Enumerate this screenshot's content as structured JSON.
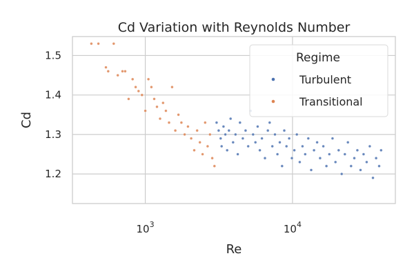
{
  "chart_data": {
    "type": "scatter",
    "title": "Cd Variation with Reynolds Number",
    "xlabel": "Re",
    "ylabel": "Cd",
    "x_scale": "log",
    "xlim": [
      320,
      50000
    ],
    "ylim": [
      1.125,
      1.548
    ],
    "grid": true,
    "x_ticks": [
      {
        "value": 1000,
        "base": "10",
        "exp": "3"
      },
      {
        "value": 10000,
        "base": "10",
        "exp": "4"
      }
    ],
    "y_ticks": [
      {
        "value": 1.2,
        "label": "1.2"
      },
      {
        "value": 1.3,
        "label": "1.3"
      },
      {
        "value": 1.4,
        "label": "1.4"
      },
      {
        "value": 1.5,
        "label": "1.5"
      }
    ],
    "legend": {
      "title": "Regime",
      "position": "top-right",
      "entries": [
        {
          "label": "Turbulent",
          "color": "#4c72b0"
        },
        {
          "label": "Transitional",
          "color": "#dd8452"
        }
      ]
    },
    "series": [
      {
        "name": "Turbulent",
        "color": "#4c72b0",
        "points": [
          [
            3050,
            1.33
          ],
          [
            3150,
            1.31
          ],
          [
            3250,
            1.29
          ],
          [
            3300,
            1.27
          ],
          [
            3400,
            1.32
          ],
          [
            3500,
            1.3
          ],
          [
            3600,
            1.26
          ],
          [
            3700,
            1.31
          ],
          [
            3800,
            1.34
          ],
          [
            3950,
            1.28
          ],
          [
            4100,
            1.3
          ],
          [
            4250,
            1.25
          ],
          [
            4400,
            1.33
          ],
          [
            4600,
            1.29
          ],
          [
            4800,
            1.31
          ],
          [
            5000,
            1.27
          ],
          [
            5200,
            1.36
          ],
          [
            5400,
            1.3
          ],
          [
            5600,
            1.28
          ],
          [
            5800,
            1.32
          ],
          [
            6000,
            1.26
          ],
          [
            6200,
            1.29
          ],
          [
            6500,
            1.24
          ],
          [
            6800,
            1.31
          ],
          [
            7000,
            1.33
          ],
          [
            7300,
            1.27
          ],
          [
            7600,
            1.3
          ],
          [
            7900,
            1.25
          ],
          [
            8200,
            1.28
          ],
          [
            8500,
            1.22
          ],
          [
            8800,
            1.31
          ],
          [
            9100,
            1.27
          ],
          [
            9500,
            1.29
          ],
          [
            9900,
            1.24
          ],
          [
            10300,
            1.26
          ],
          [
            10700,
            1.3
          ],
          [
            11200,
            1.23
          ],
          [
            11700,
            1.27
          ],
          [
            12200,
            1.25
          ],
          [
            12800,
            1.29
          ],
          [
            13400,
            1.21
          ],
          [
            14000,
            1.26
          ],
          [
            14700,
            1.28
          ],
          [
            15400,
            1.24
          ],
          [
            16200,
            1.27
          ],
          [
            17000,
            1.22
          ],
          [
            17800,
            1.25
          ],
          [
            18700,
            1.29
          ],
          [
            19600,
            1.23
          ],
          [
            20600,
            1.26
          ],
          [
            21600,
            1.2
          ],
          [
            22700,
            1.25
          ],
          [
            23800,
            1.28
          ],
          [
            25000,
            1.22
          ],
          [
            26300,
            1.24
          ],
          [
            27600,
            1.26
          ],
          [
            29000,
            1.21
          ],
          [
            30400,
            1.25
          ],
          [
            31900,
            1.23
          ],
          [
            33500,
            1.27
          ],
          [
            35200,
            1.19
          ],
          [
            37000,
            1.24
          ],
          [
            38800,
            1.22
          ],
          [
            40000,
            1.26
          ]
        ]
      },
      {
        "name": "Transitional",
        "color": "#dd8452",
        "points": [
          [
            430,
            1.53
          ],
          [
            480,
            1.53
          ],
          [
            540,
            1.47
          ],
          [
            560,
            1.46
          ],
          [
            610,
            1.53
          ],
          [
            650,
            1.45
          ],
          [
            700,
            1.46
          ],
          [
            730,
            1.46
          ],
          [
            770,
            1.39
          ],
          [
            820,
            1.44
          ],
          [
            860,
            1.42
          ],
          [
            900,
            1.41
          ],
          [
            950,
            1.4
          ],
          [
            1000,
            1.36
          ],
          [
            1050,
            1.44
          ],
          [
            1100,
            1.42
          ],
          [
            1150,
            1.39
          ],
          [
            1200,
            1.37
          ],
          [
            1260,
            1.34
          ],
          [
            1320,
            1.38
          ],
          [
            1380,
            1.36
          ],
          [
            1450,
            1.33
          ],
          [
            1520,
            1.42
          ],
          [
            1600,
            1.31
          ],
          [
            1680,
            1.35
          ],
          [
            1760,
            1.33
          ],
          [
            1850,
            1.3
          ],
          [
            1950,
            1.32
          ],
          [
            2050,
            1.29
          ],
          [
            2150,
            1.26
          ],
          [
            2250,
            1.31
          ],
          [
            2350,
            1.28
          ],
          [
            2450,
            1.25
          ],
          [
            2550,
            1.33
          ],
          [
            2650,
            1.27
          ],
          [
            2750,
            1.3
          ],
          [
            2850,
            1.24
          ],
          [
            2950,
            1.22
          ]
        ]
      }
    ]
  }
}
